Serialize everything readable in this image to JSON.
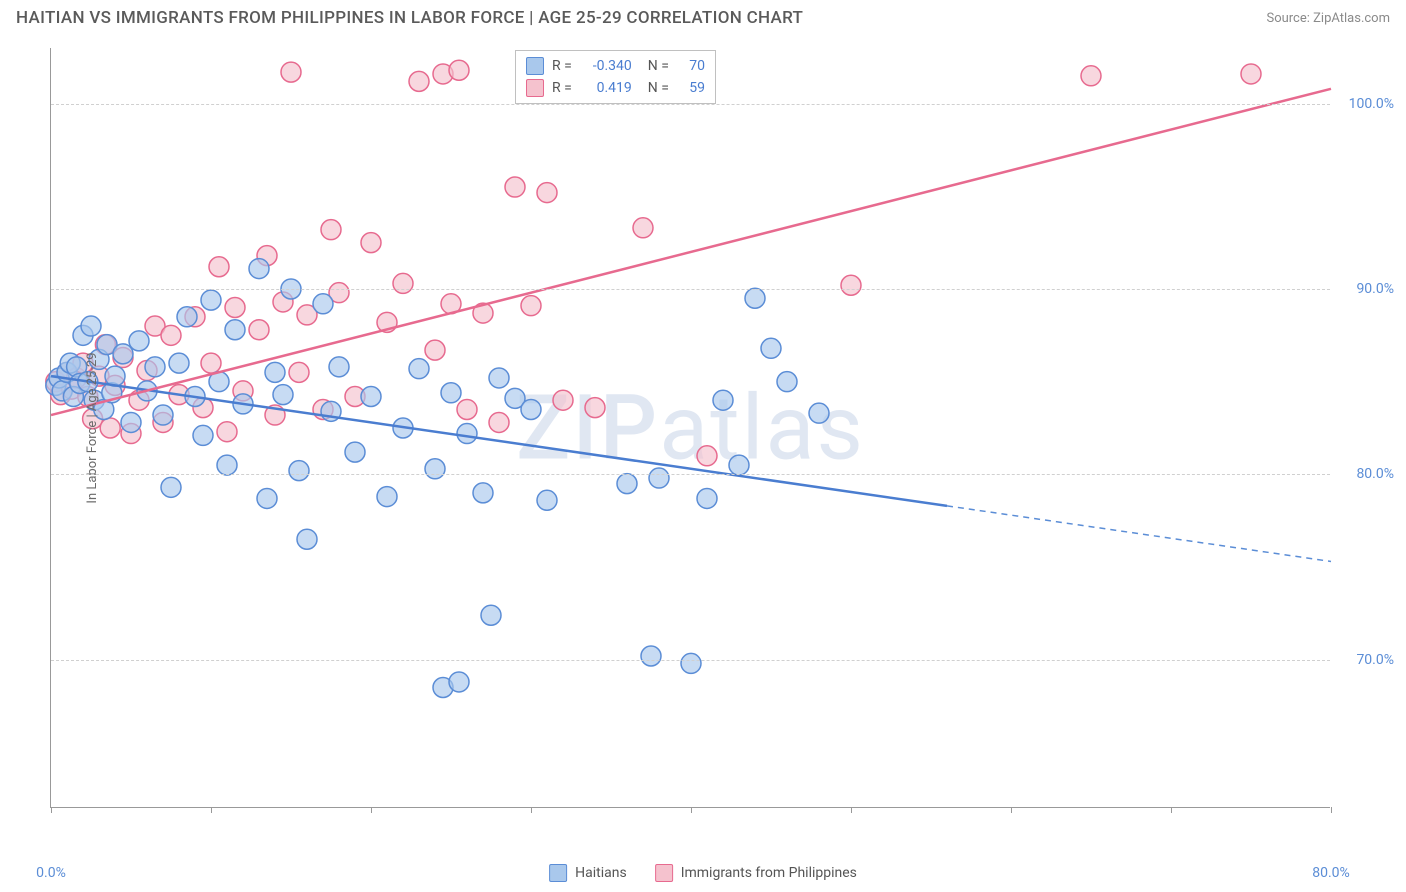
{
  "title": "HAITIAN VS IMMIGRANTS FROM PHILIPPINES IN LABOR FORCE | AGE 25-29 CORRELATION CHART",
  "source": "Source: ZipAtlas.com",
  "watermark": {
    "zip": "ZIP",
    "atlas": "atlas"
  },
  "ylabel": "In Labor Force | Age 25-29",
  "chart": {
    "type": "scatter",
    "background_color": "#ffffff",
    "grid_color": "#d0d0d0",
    "xlim": [
      0,
      80
    ],
    "ylim": [
      62,
      103
    ],
    "yticks": [
      {
        "value": 70,
        "label": "70.0%"
      },
      {
        "value": 80,
        "label": "80.0%"
      },
      {
        "value": 90,
        "label": "90.0%"
      },
      {
        "value": 100,
        "label": "100.0%"
      }
    ],
    "xticks": [
      0,
      10,
      20,
      30,
      40,
      50,
      60,
      70,
      80
    ],
    "xlabels": [
      {
        "value": 0,
        "label": "0.0%"
      },
      {
        "value": 80,
        "label": "80.0%"
      }
    ],
    "marker_radius": 10,
    "marker_opacity": 0.65,
    "series": [
      {
        "name": "Haitians",
        "color_fill": "#a9c8ec",
        "color_stroke": "#5b8dd6",
        "stats": {
          "R": "-0.340",
          "N": "70"
        },
        "trend": {
          "x1": 0,
          "y1": 85.3,
          "x2": 56,
          "y2": 78.3,
          "extrap_x2": 80,
          "extrap_y2": 75.3
        },
        "points": [
          [
            0.3,
            84.8
          ],
          [
            0.5,
            85.2
          ],
          [
            0.7,
            84.5
          ],
          [
            1,
            85.5
          ],
          [
            1.2,
            86
          ],
          [
            1.4,
            84.2
          ],
          [
            1.6,
            85.8
          ],
          [
            1.8,
            84.9
          ],
          [
            2,
            87.5
          ],
          [
            2.3,
            85
          ],
          [
            2.5,
            88
          ],
          [
            2.7,
            84
          ],
          [
            3,
            86.2
          ],
          [
            3.3,
            83.5
          ],
          [
            3.5,
            87
          ],
          [
            3.8,
            84.4
          ],
          [
            4,
            85.3
          ],
          [
            4.5,
            86.5
          ],
          [
            5,
            82.8
          ],
          [
            5.5,
            87.2
          ],
          [
            6,
            84.5
          ],
          [
            6.5,
            85.8
          ],
          [
            7,
            83.2
          ],
          [
            7.5,
            79.3
          ],
          [
            8,
            86
          ],
          [
            8.5,
            88.5
          ],
          [
            9,
            84.2
          ],
          [
            9.5,
            82.1
          ],
          [
            10,
            89.4
          ],
          [
            10.5,
            85
          ],
          [
            11,
            80.5
          ],
          [
            11.5,
            87.8
          ],
          [
            12,
            83.8
          ],
          [
            13,
            91.1
          ],
          [
            13.5,
            78.7
          ],
          [
            14,
            85.5
          ],
          [
            14.5,
            84.3
          ],
          [
            15,
            90
          ],
          [
            15.5,
            80.2
          ],
          [
            16,
            76.5
          ],
          [
            17,
            89.2
          ],
          [
            17.5,
            83.4
          ],
          [
            18,
            85.8
          ],
          [
            19,
            81.2
          ],
          [
            20,
            84.2
          ],
          [
            21,
            78.8
          ],
          [
            22,
            82.5
          ],
          [
            23,
            85.7
          ],
          [
            24,
            80.3
          ],
          [
            24.5,
            68.5
          ],
          [
            25,
            84.4
          ],
          [
            25.5,
            68.8
          ],
          [
            26,
            82.2
          ],
          [
            27,
            79
          ],
          [
            27.5,
            72.4
          ],
          [
            28,
            85.2
          ],
          [
            29,
            84.1
          ],
          [
            30,
            83.5
          ],
          [
            31,
            78.6
          ],
          [
            36,
            79.5
          ],
          [
            37.5,
            70.2
          ],
          [
            38,
            79.8
          ],
          [
            40,
            69.8
          ],
          [
            41,
            78.7
          ],
          [
            42,
            84
          ],
          [
            43,
            80.5
          ],
          [
            44,
            89.5
          ],
          [
            45,
            86.8
          ],
          [
            46,
            85
          ],
          [
            48,
            83.3
          ]
        ]
      },
      {
        "name": "Immigrants from Philippines",
        "color_fill": "#f5c2ce",
        "color_stroke": "#e76a8f",
        "stats": {
          "R": "0.419",
          "N": "59"
        },
        "trend": {
          "x1": 0,
          "y1": 83.2,
          "x2": 80,
          "y2": 100.8
        },
        "points": [
          [
            0.3,
            85
          ],
          [
            0.6,
            84.3
          ],
          [
            1,
            85.5
          ],
          [
            1.3,
            84.6
          ],
          [
            1.6,
            85.2
          ],
          [
            2,
            86
          ],
          [
            2.3,
            84.2
          ],
          [
            2.6,
            83
          ],
          [
            3,
            85.3
          ],
          [
            3.4,
            87
          ],
          [
            3.7,
            82.5
          ],
          [
            4,
            84.8
          ],
          [
            4.5,
            86.3
          ],
          [
            5,
            82.2
          ],
          [
            5.5,
            84
          ],
          [
            6,
            85.6
          ],
          [
            6.5,
            88
          ],
          [
            7,
            82.8
          ],
          [
            7.5,
            87.5
          ],
          [
            8,
            84.3
          ],
          [
            9,
            88.5
          ],
          [
            9.5,
            83.6
          ],
          [
            10,
            86
          ],
          [
            10.5,
            91.2
          ],
          [
            11,
            82.3
          ],
          [
            11.5,
            89
          ],
          [
            12,
            84.5
          ],
          [
            13,
            87.8
          ],
          [
            13.5,
            91.8
          ],
          [
            14,
            83.2
          ],
          [
            14.5,
            89.3
          ],
          [
            15,
            101.7
          ],
          [
            15.5,
            85.5
          ],
          [
            16,
            88.6
          ],
          [
            17,
            83.5
          ],
          [
            17.5,
            93.2
          ],
          [
            18,
            89.8
          ],
          [
            19,
            84.2
          ],
          [
            20,
            92.5
          ],
          [
            21,
            88.2
          ],
          [
            22,
            90.3
          ],
          [
            23,
            101.2
          ],
          [
            24,
            86.7
          ],
          [
            24.5,
            101.6
          ],
          [
            25,
            89.2
          ],
          [
            25.5,
            101.8
          ],
          [
            26,
            83.5
          ],
          [
            27,
            88.7
          ],
          [
            28,
            82.8
          ],
          [
            29,
            95.5
          ],
          [
            30,
            89.1
          ],
          [
            31,
            95.2
          ],
          [
            32,
            84
          ],
          [
            34,
            83.6
          ],
          [
            37,
            93.3
          ],
          [
            41,
            81
          ],
          [
            50,
            90.2
          ],
          [
            65,
            101.5
          ],
          [
            75,
            101.6
          ]
        ]
      }
    ]
  },
  "legend": [
    {
      "swatch": "blue",
      "label": "Haitians"
    },
    {
      "swatch": "pink",
      "label": "Immigrants from Philippines"
    }
  ]
}
